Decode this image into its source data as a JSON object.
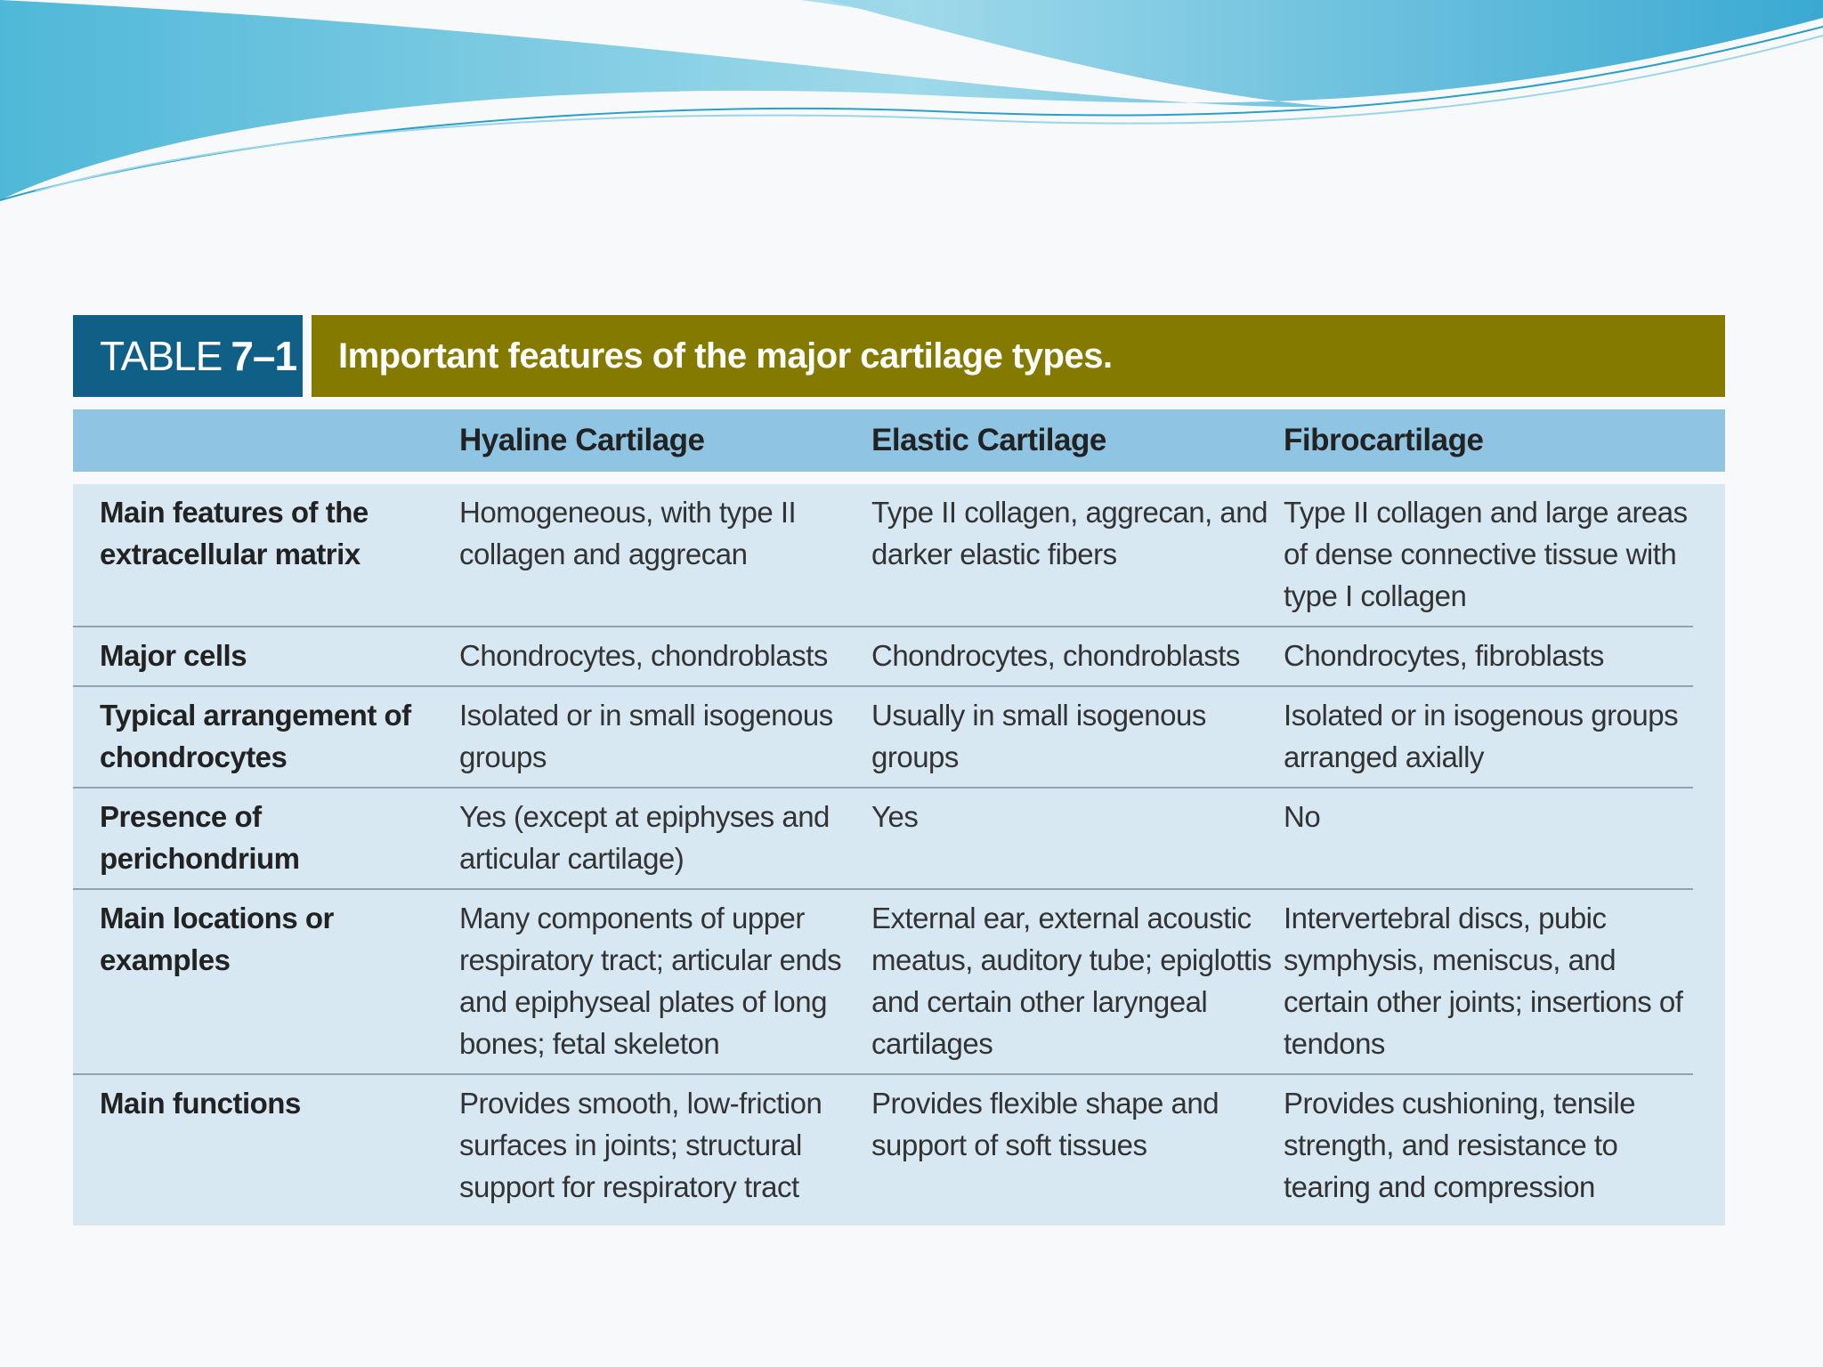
{
  "table": {
    "label_prefix": "TABLE",
    "label_number": "7–1",
    "title": "Important features of the major cartilage types.",
    "columns": [
      "",
      "Hyaline Cartilage",
      "Elastic Cartilage",
      "Fibrocartilage"
    ],
    "rows": [
      {
        "feature": "Main features of the extracellular matrix",
        "hyaline": "Homogeneous, with type II collagen and aggrecan",
        "elastic": "Type II collagen, aggrecan, and darker elastic fibers",
        "fibro": "Type II collagen and large areas of dense connective tissue with type I collagen"
      },
      {
        "feature": "Major cells",
        "hyaline": "Chondrocytes, chondroblasts",
        "elastic": "Chondrocytes, chondroblasts",
        "fibro": "Chondrocytes, fibroblasts"
      },
      {
        "feature": "Typical arrangement of chondrocytes",
        "hyaline": "Isolated or in small isogenous groups",
        "elastic": "Usually in small isogenous groups",
        "fibro": "Isolated or in isogenous groups arranged axially"
      },
      {
        "feature": "Presence of perichondrium",
        "hyaline": "Yes (except at epiphyses and articular cartilage)",
        "elastic": "Yes",
        "fibro": "No"
      },
      {
        "feature": "Main locations or examples",
        "hyaline": "Many components of upper respiratory tract; articular ends and epiphyseal plates of long bones; fetal skeleton",
        "elastic": "External ear, external acoustic meatus, auditory tube; epiglottis and certain other laryngeal cartilages",
        "fibro": "Intervertebral discs, pubic symphysis, meniscus, and certain other joints; insertions of tendons"
      },
      {
        "feature": "Main functions",
        "hyaline": "Provides smooth, low-friction surfaces in joints; structural support for respiratory tract",
        "elastic": "Provides flexible shape and support of soft tissues",
        "fibro": "Provides cushioning, tensile strength, and resistance to tearing and compression"
      }
    ]
  },
  "colors": {
    "label_bg": "#0f5f86",
    "title_bg": "#847a00",
    "header_bg": "#8fc4e3",
    "body_bg": "#d7e8f3",
    "swoosh": "#5bc0dc"
  }
}
